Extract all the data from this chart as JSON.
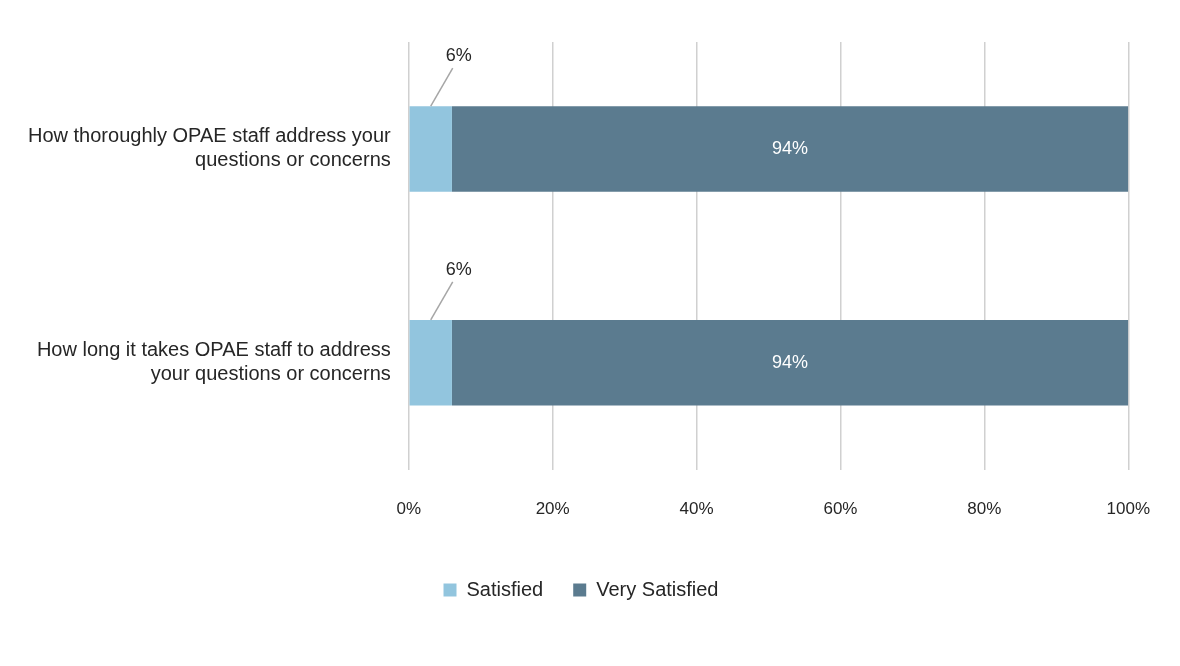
{
  "chart_data": {
    "type": "bar",
    "orientation": "horizontal",
    "stacked": true,
    "categories": [
      "How thoroughly OPAE staff address your questions or concerns",
      "How long it takes OPAE staff to address your questions or concerns"
    ],
    "series": [
      {
        "name": "Satisfied",
        "color": "#92c5de",
        "values": [
          6,
          6
        ],
        "value_labels": [
          "6%",
          "6%"
        ]
      },
      {
        "name": "Very Satisfied",
        "color": "#5b7b8f",
        "values": [
          94,
          94
        ],
        "value_labels": [
          "94%",
          "94%"
        ]
      }
    ],
    "xlim": [
      0,
      100
    ],
    "xticks": [
      {
        "value": 0,
        "label": "0%"
      },
      {
        "value": 20,
        "label": "20%"
      },
      {
        "value": 40,
        "label": "40%"
      },
      {
        "value": 60,
        "label": "60%"
      },
      {
        "value": 80,
        "label": "80%"
      },
      {
        "value": 100,
        "label": "100%"
      }
    ],
    "grid": "x",
    "legend": "bottom"
  }
}
